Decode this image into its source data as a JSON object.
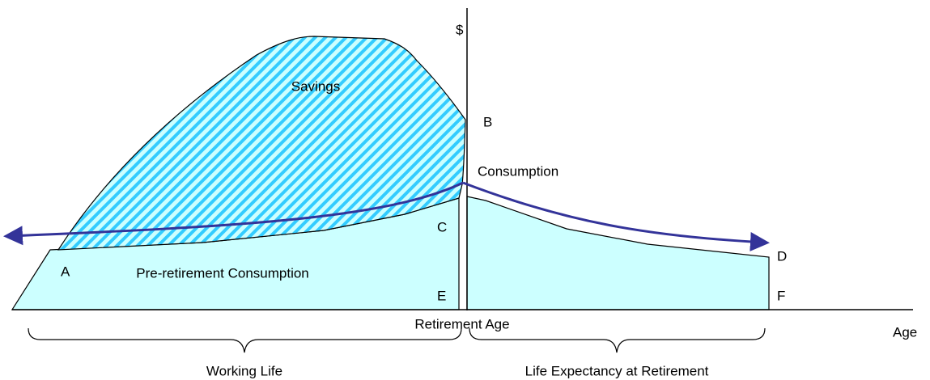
{
  "axes": {
    "y_label": "$",
    "x_label": "Age"
  },
  "regions": {
    "savings": "Savings",
    "post_retirement": "Consumption",
    "pre_retirement": "Pre-retirement Consumption"
  },
  "points": {
    "A": "A",
    "B": "B",
    "C": "C",
    "D": "D",
    "E": "E",
    "F": "F"
  },
  "retirement_marker": "Retirement Age",
  "braces": {
    "working": "Working Life",
    "retired": "Life Expectancy at Retirement"
  }
}
